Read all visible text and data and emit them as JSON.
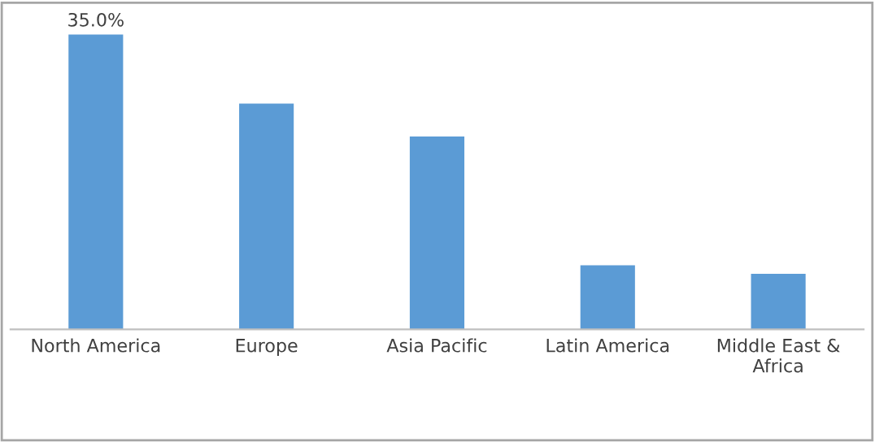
{
  "chart_data": {
    "type": "bar",
    "categories": [
      "North America",
      "Europe",
      "Asia Pacific",
      "Latin America",
      "Middle East &\nAfrica"
    ],
    "values": [
      35.0,
      26.8,
      22.9,
      7.6,
      6.6
    ],
    "value_labels": [
      "35.0%",
      null,
      null,
      null,
      null
    ],
    "color": "#5b9bd5",
    "grid": false,
    "legend": false
  }
}
